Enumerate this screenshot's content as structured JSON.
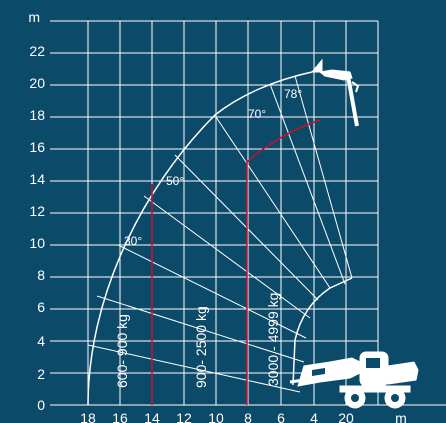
{
  "colors": {
    "background": "#0c4a6a",
    "grid": "#ffffff",
    "curve": "#ffffff",
    "limit_line": "#c8102e"
  },
  "y_axis": {
    "unit": "m",
    "ticks": [
      "0",
      "2",
      "4",
      "6",
      "8",
      "10",
      "12",
      "14",
      "16",
      "18",
      "20",
      "22"
    ]
  },
  "x_axis": {
    "unit": "m",
    "ticks": [
      "18",
      "16",
      "14",
      "12",
      "10",
      "8",
      "6",
      "4",
      "20"
    ]
  },
  "boom_angles": [
    "30°",
    "50°",
    "70°",
    "78°"
  ],
  "load_zones": [
    "600- 900 kg",
    "900- 2500 kg",
    "3000 - 4999 kg"
  ],
  "icons": [
    "telehandler-icon",
    "boom-head-icon"
  ]
}
